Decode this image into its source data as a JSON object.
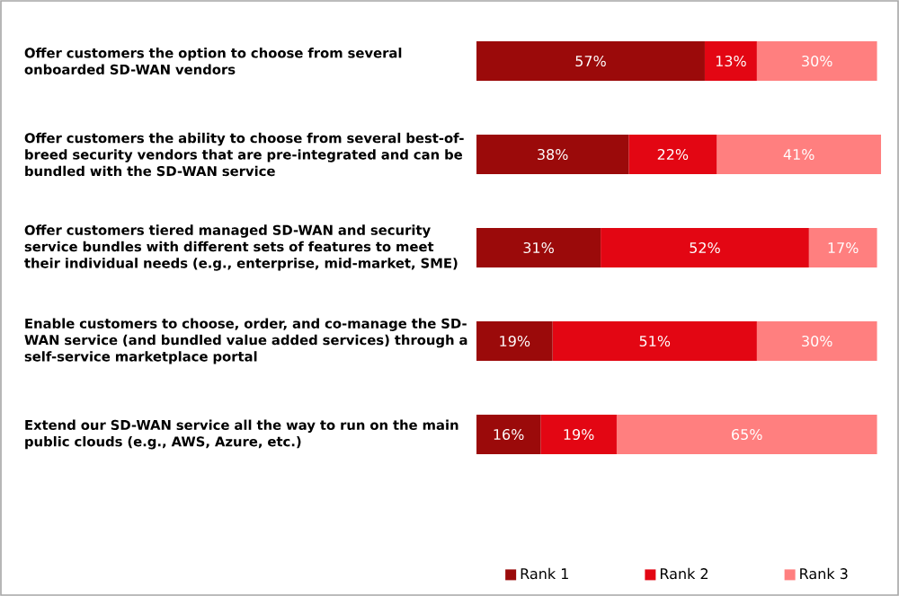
{
  "chart_data": {
    "type": "bar",
    "orientation": "horizontal",
    "stacked": true,
    "legend": "bottom",
    "categories": [
      "Offer customers the option to choose from several onboarded SD-WAN vendors",
      "Offer customers the ability to choose from several best-of-breed security vendors that are pre-integrated and can be bundled with the SD-WAN service",
      "Offer customers tiered managed SD-WAN and security service bundles with different sets of features to meet their individual needs (e.g., enterprise, mid-market, SME)",
      "Enable customers to choose, order, and co-manage the SD-WAN service (and bundled value added services) through a self-service marketplace portal",
      "Extend our SD-WAN service all the way to run on the main public clouds (e.g., AWS, Azure, etc.)"
    ],
    "series": [
      {
        "name": "Rank 1",
        "color": "#9b0a0a",
        "values": [
          57,
          38,
          31,
          19,
          16
        ],
        "value_labels": [
          "57%",
          "38%",
          "31%",
          "19%",
          "16%"
        ]
      },
      {
        "name": "Rank 2",
        "color": "#e30613",
        "values": [
          13,
          22,
          52,
          51,
          19
        ],
        "value_labels": [
          "13%",
          "22%",
          "52%",
          "51%",
          "19%"
        ]
      },
      {
        "name": "Rank 3",
        "color": "#ff7f7f",
        "values": [
          30,
          41,
          17,
          30,
          65
        ],
        "value_labels": [
          "30%",
          "41%",
          "17%",
          "30%",
          "65%"
        ]
      }
    ]
  }
}
